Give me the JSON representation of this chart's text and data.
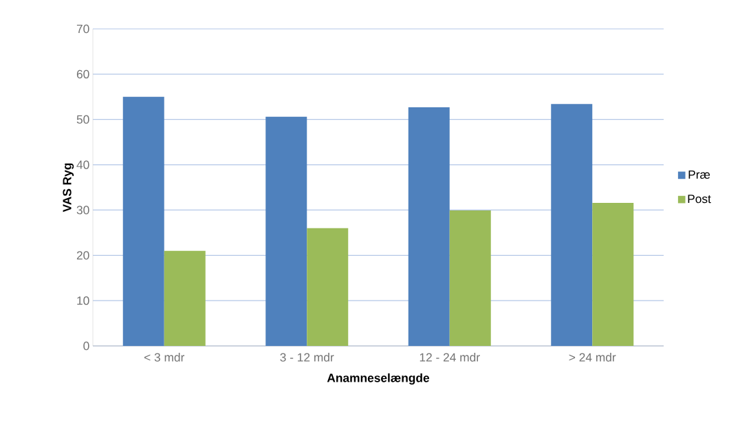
{
  "chart_data": {
    "type": "bar",
    "xlabel": "Anamneselængde",
    "ylabel": "VAS Ryg",
    "categories": [
      "< 3 mdr",
      "3 - 12 mdr",
      "12 - 24 mdr",
      "> 24 mdr"
    ],
    "series": [
      {
        "name": "Præ",
        "color": "#4f81bd",
        "values": [
          55,
          50.6,
          52.7,
          53.4
        ]
      },
      {
        "name": "Post",
        "color": "#9bbb59",
        "values": [
          21,
          26,
          29.9,
          31.6
        ]
      }
    ],
    "ylim": [
      0,
      70
    ],
    "yticks": [
      0,
      10,
      20,
      30,
      40,
      50,
      60,
      70
    ],
    "grid": "y",
    "legend": "right"
  }
}
